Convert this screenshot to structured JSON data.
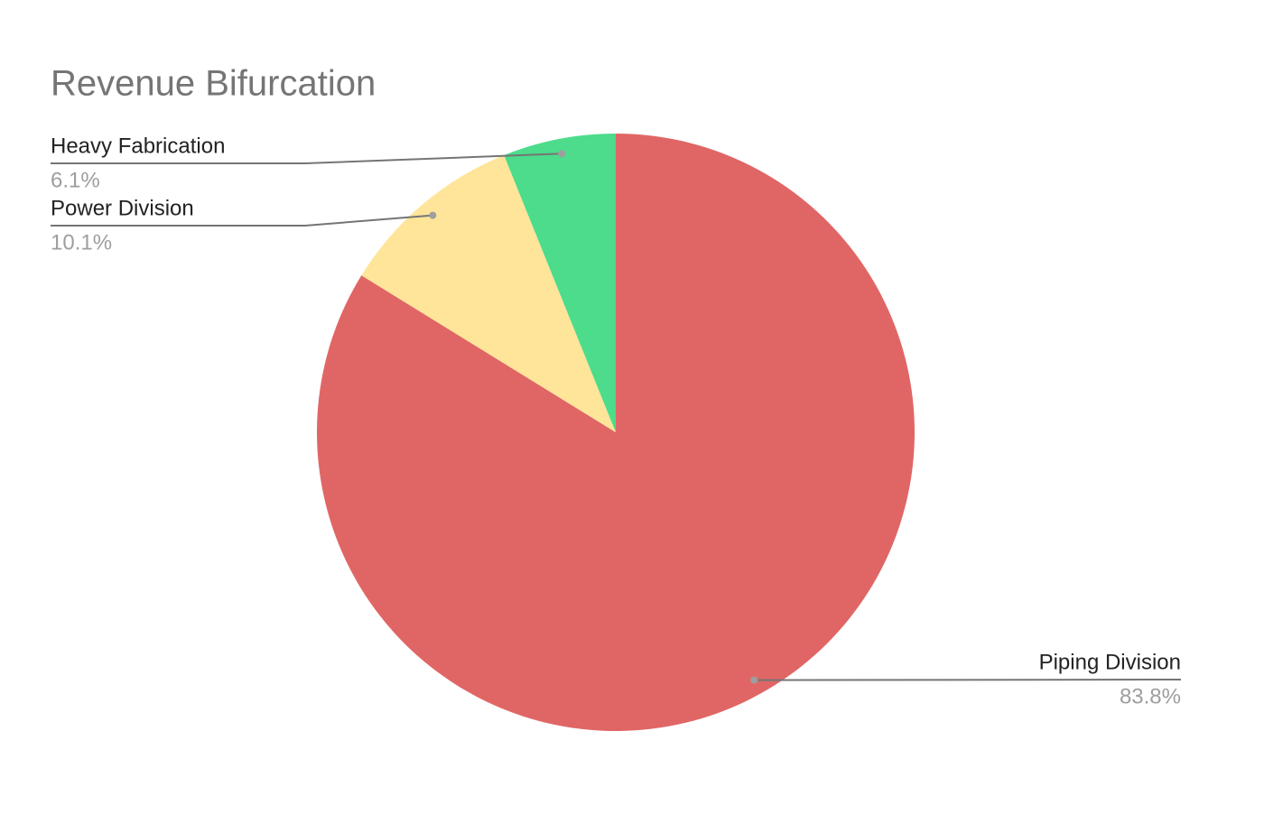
{
  "chart_data": {
    "type": "pie",
    "title": "Revenue Bifurcation",
    "categories": [
      "Piping Division",
      "Power Division",
      "Heavy Fabrication"
    ],
    "values": [
      83.8,
      10.1,
      6.1
    ],
    "value_labels": [
      "83.8%",
      "10.1%",
      "6.1%"
    ],
    "colors": [
      "#e06666",
      "#ffe599",
      "#4cdc8b"
    ]
  }
}
